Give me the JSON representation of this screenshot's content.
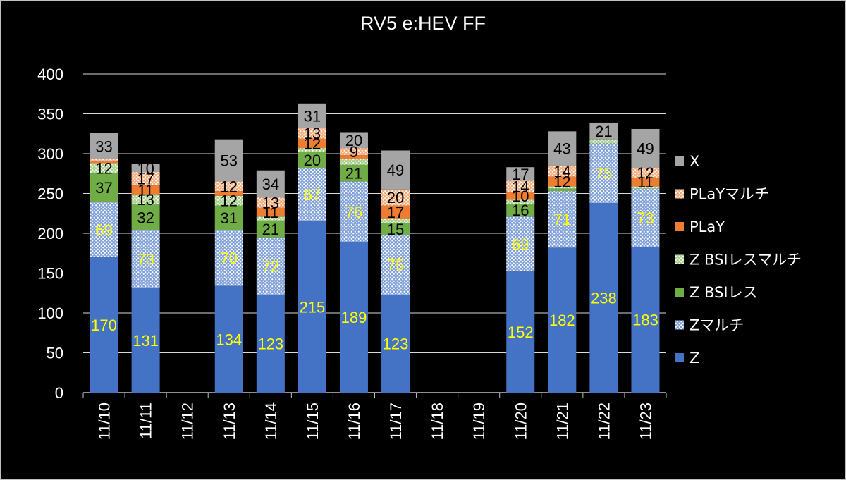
{
  "chart_data": {
    "type": "bar",
    "stacked": true,
    "title": "RV5 e:HEV FF",
    "xlabel": "",
    "ylabel": "",
    "ylim": [
      0,
      400
    ],
    "yticks": [
      0,
      50,
      100,
      150,
      200,
      250,
      300,
      350,
      400
    ],
    "grid": true,
    "legend_position": "right",
    "categories": [
      "11/10",
      "11/11",
      "11/12",
      "11/13",
      "11/14",
      "11/15",
      "11/16",
      "11/17",
      "11/18",
      "11/19",
      "11/20",
      "11/21",
      "11/22",
      "11/23"
    ],
    "series": [
      {
        "name": "Z",
        "color": "#4472c4",
        "pattern": "solid",
        "label_color": "#ffff00",
        "values": [
          170,
          131,
          0,
          134,
          123,
          215,
          189,
          123,
          0,
          0,
          152,
          182,
          238,
          183
        ]
      },
      {
        "name": "Zマルチ",
        "color": "#4472c4",
        "pattern": "dots",
        "label_color": "#ffff00",
        "values": [
          69,
          73,
          0,
          70,
          72,
          67,
          76,
          75,
          0,
          0,
          69,
          71,
          75,
          73
        ]
      },
      {
        "name": "Z BSIレス",
        "color": "#70ad47",
        "pattern": "solid",
        "label_color": "#000000",
        "values": [
          37,
          32,
          0,
          31,
          21,
          20,
          21,
          15,
          0,
          0,
          16,
          3,
          0,
          0
        ]
      },
      {
        "name": "Z BSIレスマルチ",
        "color": "#70ad47",
        "pattern": "dots",
        "label_color": "#000000",
        "values": [
          12,
          13,
          0,
          12,
          5,
          5,
          7,
          5,
          0,
          0,
          5,
          3,
          5,
          3
        ]
      },
      {
        "name": "PLaY",
        "color": "#ed7d31",
        "pattern": "solid",
        "label_color": "#000000",
        "values": [
          2,
          11,
          0,
          6,
          11,
          12,
          5,
          17,
          0,
          0,
          10,
          12,
          0,
          11
        ]
      },
      {
        "name": "PLaYマルチ",
        "color": "#ed7d31",
        "pattern": "dots",
        "label_color": "#000000",
        "values": [
          3,
          17,
          0,
          12,
          13,
          13,
          9,
          20,
          0,
          0,
          14,
          14,
          0,
          12
        ]
      },
      {
        "name": "X",
        "color": "#a5a5a5",
        "pattern": "solid",
        "label_color": "#000000",
        "values": [
          33,
          10,
          0,
          53,
          34,
          31,
          20,
          49,
          0,
          0,
          17,
          43,
          21,
          49
        ]
      }
    ],
    "data_labels": {
      "Z": [
        170,
        131,
        null,
        134,
        123,
        215,
        189,
        123,
        null,
        null,
        152,
        182,
        238,
        183
      ],
      "Zマルチ": [
        69,
        73,
        null,
        70,
        72,
        67,
        76,
        75,
        null,
        null,
        69,
        71,
        75,
        73
      ],
      "Z BSIレス": [
        37,
        32,
        null,
        31,
        21,
        20,
        21,
        15,
        null,
        null,
        16,
        null,
        null,
        null
      ],
      "Z BSIレスマルチ": [
        12,
        13,
        null,
        12,
        null,
        null,
        null,
        null,
        null,
        null,
        null,
        null,
        null,
        null
      ],
      "PLaY": [
        null,
        11,
        null,
        null,
        11,
        12,
        null,
        17,
        null,
        null,
        10,
        12,
        null,
        11
      ],
      "PLaYマルチ": [
        null,
        17,
        null,
        12,
        13,
        13,
        9,
        20,
        null,
        null,
        14,
        14,
        null,
        12
      ],
      "X": [
        33,
        10,
        null,
        53,
        34,
        31,
        20,
        49,
        null,
        null,
        17,
        43,
        21,
        49
      ]
    }
  }
}
